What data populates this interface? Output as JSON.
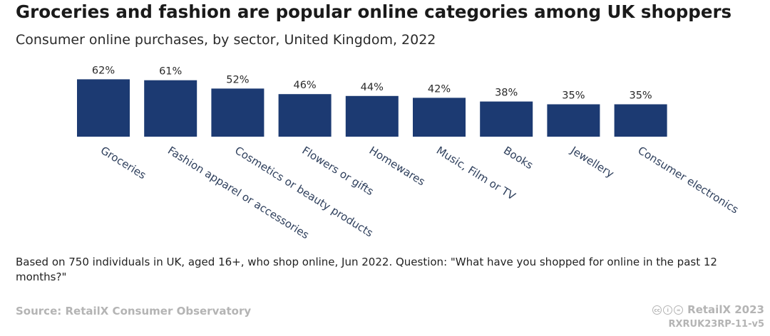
{
  "header": {
    "title": "Groceries and fashion are popular online categories among UK shoppers",
    "subtitle": "Consumer online purchases, by sector, United Kingdom, 2022"
  },
  "chart_data": {
    "type": "bar",
    "categories": [
      "Groceries",
      "Fashion apparel or accessories",
      "Cosmetics or beauty products",
      "Flowers or gifts",
      "Homewares",
      "Music, Film or TV",
      "Books",
      "Jewellery",
      "Consumer electronics"
    ],
    "values": [
      62,
      61,
      52,
      46,
      44,
      42,
      38,
      35,
      35
    ],
    "value_labels": [
      "62%",
      "61%",
      "52%",
      "46%",
      "44%",
      "42%",
      "38%",
      "35%",
      "35%"
    ],
    "bar_color": "#1c3a72",
    "grid": false,
    "legend": "none"
  },
  "footer": {
    "note": "Based on 750 individuals in UK, aged 16+, who shop online, Jun 2022. Question: \"What have you shopped for online in the past 12 months?\"",
    "source": "Source: RetailX Consumer Observatory",
    "brand": "RetailX 2023",
    "code": "RXRUK23RP-11-v5",
    "license_icons": [
      "creative-commons-icon",
      "attribution-icon",
      "equals-icon"
    ]
  },
  "colors": {
    "footer_text": "#b4b4b4",
    "bar": "#1c3a72"
  }
}
